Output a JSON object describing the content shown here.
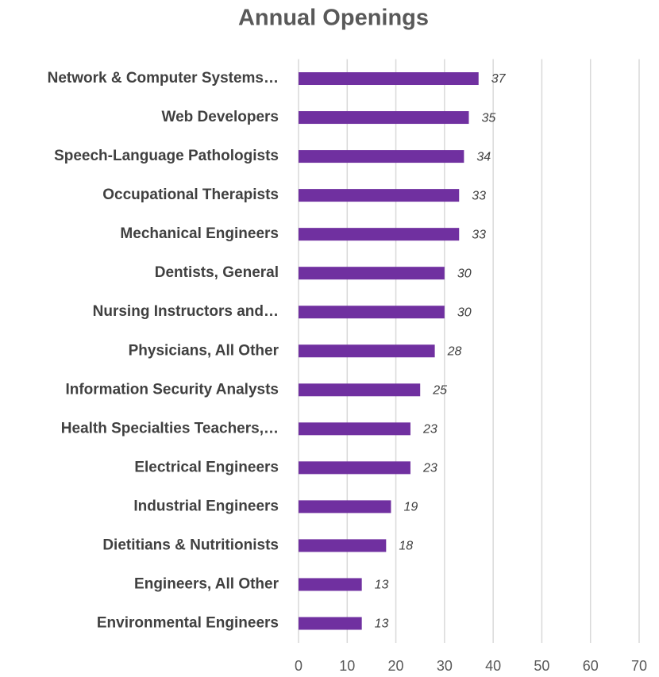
{
  "chart_data": {
    "type": "barh",
    "title": "Annual Openings",
    "categories": [
      "Network & Computer Systems…",
      "Web Developers",
      "Speech-Language Pathologists",
      "Occupational Therapists",
      "Mechanical Engineers",
      "Dentists, General",
      "Nursing Instructors and…",
      "Physicians, All Other",
      "Information Security Analysts",
      "Health Specialties Teachers,…",
      "Electrical Engineers",
      "Industrial Engineers",
      "Dietitians & Nutritionists",
      "Engineers, All Other",
      "Environmental Engineers"
    ],
    "values": [
      37,
      35,
      34,
      33,
      33,
      30,
      30,
      28,
      25,
      23,
      23,
      19,
      18,
      13,
      13
    ],
    "color": "#7030a0",
    "xlim": [
      0,
      70
    ],
    "xticks": [
      0,
      10,
      20,
      30,
      40,
      50,
      60,
      70
    ],
    "grid": true
  }
}
